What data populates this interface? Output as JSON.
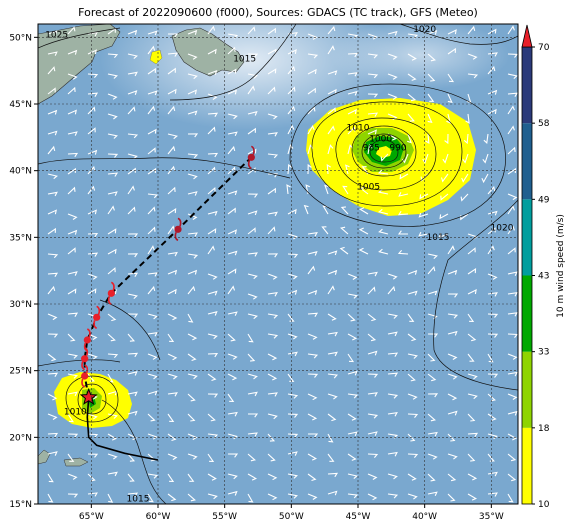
{
  "title": "Forecast of 2022090600 (f000), Sources: GDACS (TC track), GFS (Meteo)",
  "map": {
    "lon_range": [
      -69,
      -33
    ],
    "lat_range": [
      15,
      51
    ],
    "lon_ticks": [
      {
        "lon": -65,
        "label": "65°W"
      },
      {
        "lon": -60,
        "label": "60°W"
      },
      {
        "lon": -55,
        "label": "55°W"
      },
      {
        "lon": -50,
        "label": "50°W"
      },
      {
        "lon": -45,
        "label": "45°W"
      },
      {
        "lon": -40,
        "label": "40°W"
      },
      {
        "lon": -35,
        "label": "35°W"
      }
    ],
    "lat_ticks": [
      {
        "lat": 15,
        "label": "15°N"
      },
      {
        "lat": 20,
        "label": "20°N"
      },
      {
        "lat": 25,
        "label": "25°N"
      },
      {
        "lat": 30,
        "label": "30°N"
      },
      {
        "lat": 35,
        "label": "35°N"
      },
      {
        "lat": 40,
        "label": "40°N"
      },
      {
        "lat": 45,
        "label": "45°N"
      },
      {
        "lat": 50,
        "label": "50°N"
      }
    ],
    "gridlines": true,
    "ocean_color": "#7aa8cf"
  },
  "pressure_labels": [
    {
      "text": "1025",
      "lon": -67.6,
      "lat": 50.0
    },
    {
      "text": "1020",
      "lon": -40.0,
      "lat": 50.4
    },
    {
      "text": "1015",
      "lon": -53.5,
      "lat": 48.2
    },
    {
      "text": "1010",
      "lon": -45.0,
      "lat": 43.0
    },
    {
      "text": "1000",
      "lon": -43.3,
      "lat": 42.2
    },
    {
      "text": "985",
      "lon": -44.0,
      "lat": 41.5
    },
    {
      "text": "990",
      "lon": -42.0,
      "lat": 41.5
    },
    {
      "text": "1005",
      "lon": -44.2,
      "lat": 38.6
    },
    {
      "text": "1015",
      "lon": -39.0,
      "lat": 34.8
    },
    {
      "text": "1020",
      "lon": -34.2,
      "lat": 35.5
    },
    {
      "text": "1010",
      "lon": -66.2,
      "lat": 21.7
    },
    {
      "text": "1015",
      "lon": -61.5,
      "lat": 15.2
    }
  ],
  "track": {
    "observed": [
      {
        "lon": -60.0,
        "lat": 18.3
      },
      {
        "lon": -62.5,
        "lat": 18.8
      },
      {
        "lon": -64.6,
        "lat": 19.4
      },
      {
        "lon": -65.2,
        "lat": 20.0
      },
      {
        "lon": -65.3,
        "lat": 21.5
      },
      {
        "lon": -65.2,
        "lat": 23.0
      }
    ],
    "forecast": [
      {
        "lon": -65.2,
        "lat": 23.0
      },
      {
        "lon": -65.5,
        "lat": 24.6
      },
      {
        "lon": -65.5,
        "lat": 25.9
      },
      {
        "lon": -65.3,
        "lat": 27.3
      },
      {
        "lon": -64.6,
        "lat": 29.0
      },
      {
        "lon": -63.5,
        "lat": 30.8
      },
      {
        "lon": -58.5,
        "lat": 35.6
      },
      {
        "lon": -53.0,
        "lat": 41.0
      }
    ],
    "current_position": {
      "lon": -65.2,
      "lat": 23.0
    }
  },
  "colorbar": {
    "label": "10 m wind speed (m/s)",
    "ticks": [
      "10",
      "18",
      "33",
      "43",
      "49",
      "58",
      "70"
    ],
    "colors": [
      "#ffff00",
      "#8fd400",
      "#00a800",
      "#009e9e",
      "#1f5f8f",
      "#2b3a7a"
    ]
  }
}
